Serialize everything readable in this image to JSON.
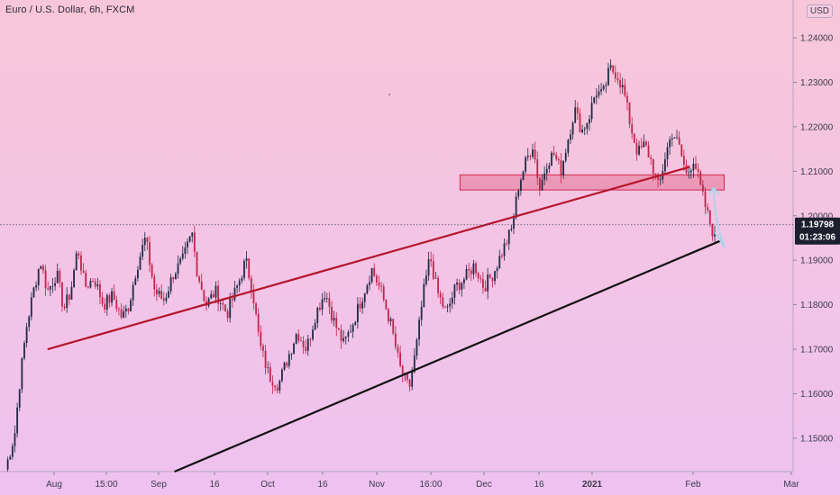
{
  "title": "Euro / U.S. Dollar, 6h, FXCM",
  "currency": "USD",
  "price_tag": {
    "price": "1.19798",
    "countdown": "01:23:06"
  },
  "chart_data": {
    "type": "candlestick",
    "title": "Euro / U.S. Dollar, 6h, FXCM",
    "y_axis": {
      "ticks": [
        "1.15000",
        "1.16000",
        "1.17000",
        "1.18000",
        "1.19000",
        "1.20000",
        "1.21000",
        "1.22000",
        "1.23000",
        "1.24000"
      ],
      "range": [
        1.1425,
        1.2485
      ]
    },
    "x_axis": {
      "ticks": [
        "Aug",
        "15:00",
        "Sep",
        "16",
        "Oct",
        "16",
        "Nov",
        "16:00",
        "Dec",
        "16",
        "2021",
        "Feb",
        "Mar"
      ],
      "bold_ticks": [
        "2021"
      ]
    },
    "price_path": [
      [
        0,
        1.143
      ],
      [
        4,
        1.151
      ],
      [
        6,
        1.162
      ],
      [
        9,
        1.175
      ],
      [
        12,
        1.183
      ],
      [
        15,
        1.19
      ],
      [
        18,
        1.183
      ],
      [
        22,
        1.187
      ],
      [
        25,
        1.179
      ],
      [
        28,
        1.183
      ],
      [
        31,
        1.193
      ],
      [
        34,
        1.184
      ],
      [
        38,
        1.186
      ],
      [
        42,
        1.18
      ],
      [
        46,
        1.182
      ],
      [
        50,
        1.177
      ],
      [
        53,
        1.18
      ],
      [
        56,
        1.188
      ],
      [
        60,
        1.195
      ],
      [
        64,
        1.183
      ],
      [
        68,
        1.181
      ],
      [
        72,
        1.187
      ],
      [
        76,
        1.19
      ],
      [
        80,
        1.196
      ],
      [
        82,
        1.188
      ],
      [
        86,
        1.18
      ],
      [
        90,
        1.183
      ],
      [
        95,
        1.178
      ],
      [
        100,
        1.185
      ],
      [
        103,
        1.19
      ],
      [
        106,
        1.183
      ],
      [
        109,
        1.171
      ],
      [
        113,
        1.164
      ],
      [
        117,
        1.162
      ],
      [
        121,
        1.168
      ],
      [
        125,
        1.174
      ],
      [
        129,
        1.17
      ],
      [
        133,
        1.178
      ],
      [
        137,
        1.183
      ],
      [
        141,
        1.176
      ],
      [
        145,
        1.171
      ],
      [
        149,
        1.176
      ],
      [
        153,
        1.182
      ],
      [
        157,
        1.188
      ],
      [
        161,
        1.183
      ],
      [
        165,
        1.176
      ],
      [
        169,
        1.166
      ],
      [
        173,
        1.161
      ],
      [
        176,
        1.17
      ],
      [
        179,
        1.182
      ],
      [
        182,
        1.191
      ],
      [
        185,
        1.183
      ],
      [
        189,
        1.178
      ],
      [
        193,
        1.184
      ],
      [
        197,
        1.186
      ],
      [
        201,
        1.189
      ],
      [
        205,
        1.184
      ],
      [
        209,
        1.187
      ],
      [
        213,
        1.192
      ],
      [
        217,
        1.197
      ],
      [
        220,
        1.207
      ],
      [
        223,
        1.212
      ],
      [
        226,
        1.216
      ],
      [
        229,
        1.206
      ],
      [
        232,
        1.212
      ],
      [
        235,
        1.214
      ],
      [
        238,
        1.21
      ],
      [
        241,
        1.217
      ],
      [
        244,
        1.224
      ],
      [
        247,
        1.219
      ],
      [
        250,
        1.222
      ],
      [
        253,
        1.228
      ],
      [
        256,
        1.227
      ],
      [
        259,
        1.233
      ],
      [
        262,
        1.232
      ],
      [
        265,
        1.228
      ],
      [
        268,
        1.22
      ],
      [
        271,
        1.214
      ],
      [
        274,
        1.216
      ],
      [
        277,
        1.212
      ],
      [
        280,
        1.206
      ],
      [
        283,
        1.214
      ],
      [
        286,
        1.219
      ],
      [
        289,
        1.215
      ],
      [
        292,
        1.209
      ],
      [
        295,
        1.213
      ],
      [
        298,
        1.206
      ],
      [
        301,
        1.2
      ],
      [
        304,
        1.195
      ]
    ],
    "price_line": 1.19798,
    "trendlines": [
      {
        "color": "#b5152b",
        "from": [
          0.06,
          1.17
        ],
        "to": [
          0.87,
          1.211
        ]
      },
      {
        "color": "#111111",
        "from": [
          0.22,
          1.1425
        ],
        "to": [
          0.91,
          1.1945
        ]
      }
    ],
    "zone": {
      "x_from": 0.58,
      "x_to": 0.913,
      "y_low": 1.2058,
      "y_high": 1.2092,
      "color": "#d4264a"
    },
    "projection": {
      "color": "#a9d5ea"
    }
  }
}
